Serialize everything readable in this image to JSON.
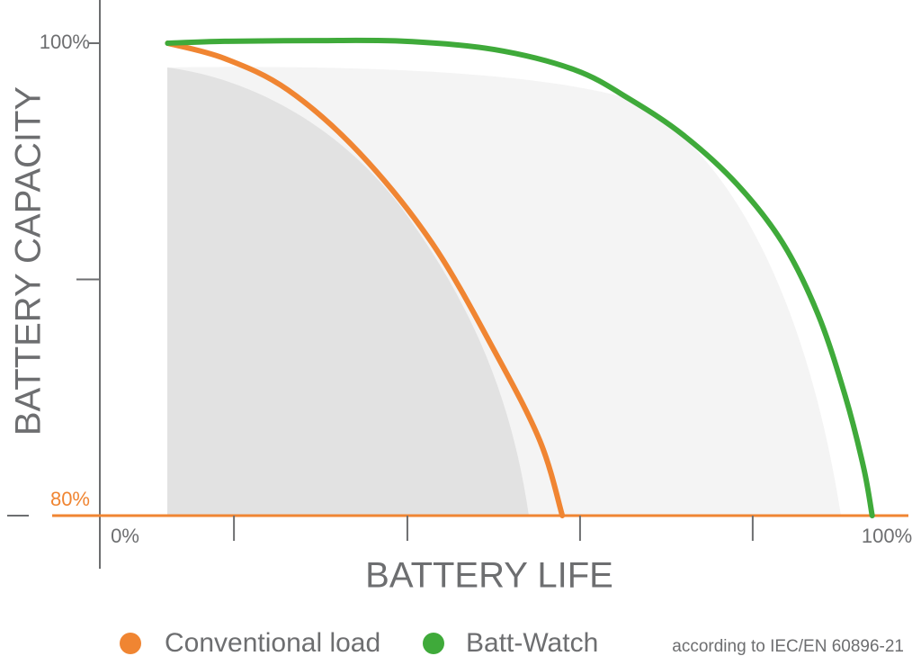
{
  "chart_data": {
    "type": "line",
    "x_label": "BATTERY LIFE",
    "y_label": "BATTERY CAPACITY",
    "xlim": [
      0,
      100
    ],
    "ylim": [
      80,
      100
    ],
    "xticks": [
      {
        "value": 0,
        "label": "0%"
      },
      {
        "value": 100,
        "label": "100%"
      }
    ],
    "xticks_minor": [
      17.4,
      39.9,
      62.3,
      84.7
    ],
    "yticks": [
      {
        "value": 80,
        "label": "80%"
      },
      {
        "value": 100,
        "label": "100%"
      }
    ],
    "yticks_minor": [
      90
    ],
    "series": [
      {
        "name": "Conventional load",
        "color": "#f08532",
        "x": [
          8.8,
          16.2,
          24.4,
          33.7,
          43.1,
          51.2,
          57.1,
          60.0
        ],
        "values": [
          100,
          99.35,
          98.02,
          95.35,
          91.54,
          86.97,
          83.16,
          80
        ]
      },
      {
        "name": "Batt-Watch",
        "color": "#3faa3a",
        "x": [
          8.8,
          16.2,
          27.9,
          39.6,
          51.2,
          61.7,
          68.7,
          75.7,
          82.7,
          88.6,
          93.2,
          96.7,
          99.1,
          100.2
        ],
        "values": [
          100,
          100.08,
          100.11,
          100.08,
          99.73,
          98.86,
          97.64,
          96.11,
          94.02,
          91.54,
          88.5,
          85.07,
          82.02,
          80
        ]
      }
    ],
    "note": "according to IEC/EN 60896-21"
  }
}
